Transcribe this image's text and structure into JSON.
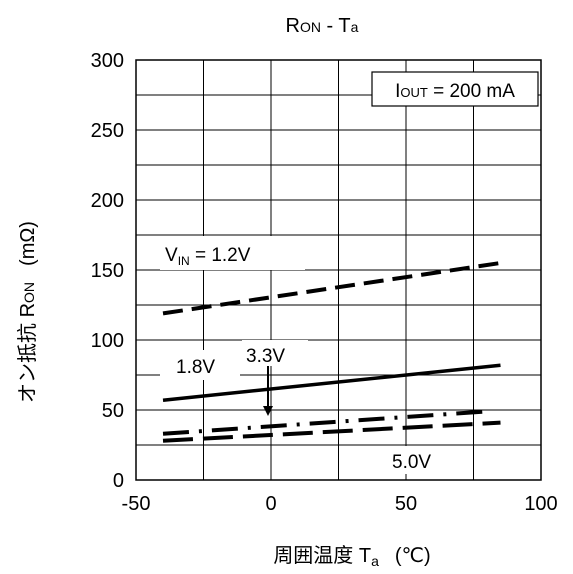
{
  "chart_data": {
    "type": "line",
    "title": {
      "main": "R",
      "sub1": "ON",
      "mid": " - T",
      "sub2": "a"
    },
    "xlabel": {
      "main": "周囲温度 T",
      "sub": "a",
      "unit": "(℃)"
    },
    "ylabel": {
      "main": "オン抵抗 R",
      "sub": "ON",
      "unit": "(mΩ)"
    },
    "xlim": [
      -50,
      100
    ],
    "ylim": [
      0,
      300
    ],
    "x_ticks": [
      "-50",
      "0",
      "50",
      "100"
    ],
    "y_ticks": [
      "0",
      "50",
      "100",
      "150",
      "200",
      "250",
      "300"
    ],
    "grid": true,
    "condition": {
      "main": "I",
      "sub": "OUT",
      "rest": " = 200 mA"
    },
    "series": [
      {
        "label": {
          "main": "V",
          "sub": "IN",
          "rest": " = 1.2V"
        },
        "style": "dashed",
        "x": [
          -40,
          85
        ],
        "y": [
          119,
          155
        ]
      },
      {
        "label": {
          "main": "1.8V"
        },
        "style": "solid",
        "x": [
          -40,
          85
        ],
        "y": [
          57,
          82
        ]
      },
      {
        "label": {
          "main": "3.3V"
        },
        "style": "dashdot",
        "x": [
          -40,
          80
        ],
        "y": [
          33,
          49
        ]
      },
      {
        "label": {
          "main": "5.0V"
        },
        "style": "longdash",
        "x": [
          -40,
          85
        ],
        "y": [
          28,
          41
        ]
      }
    ]
  }
}
